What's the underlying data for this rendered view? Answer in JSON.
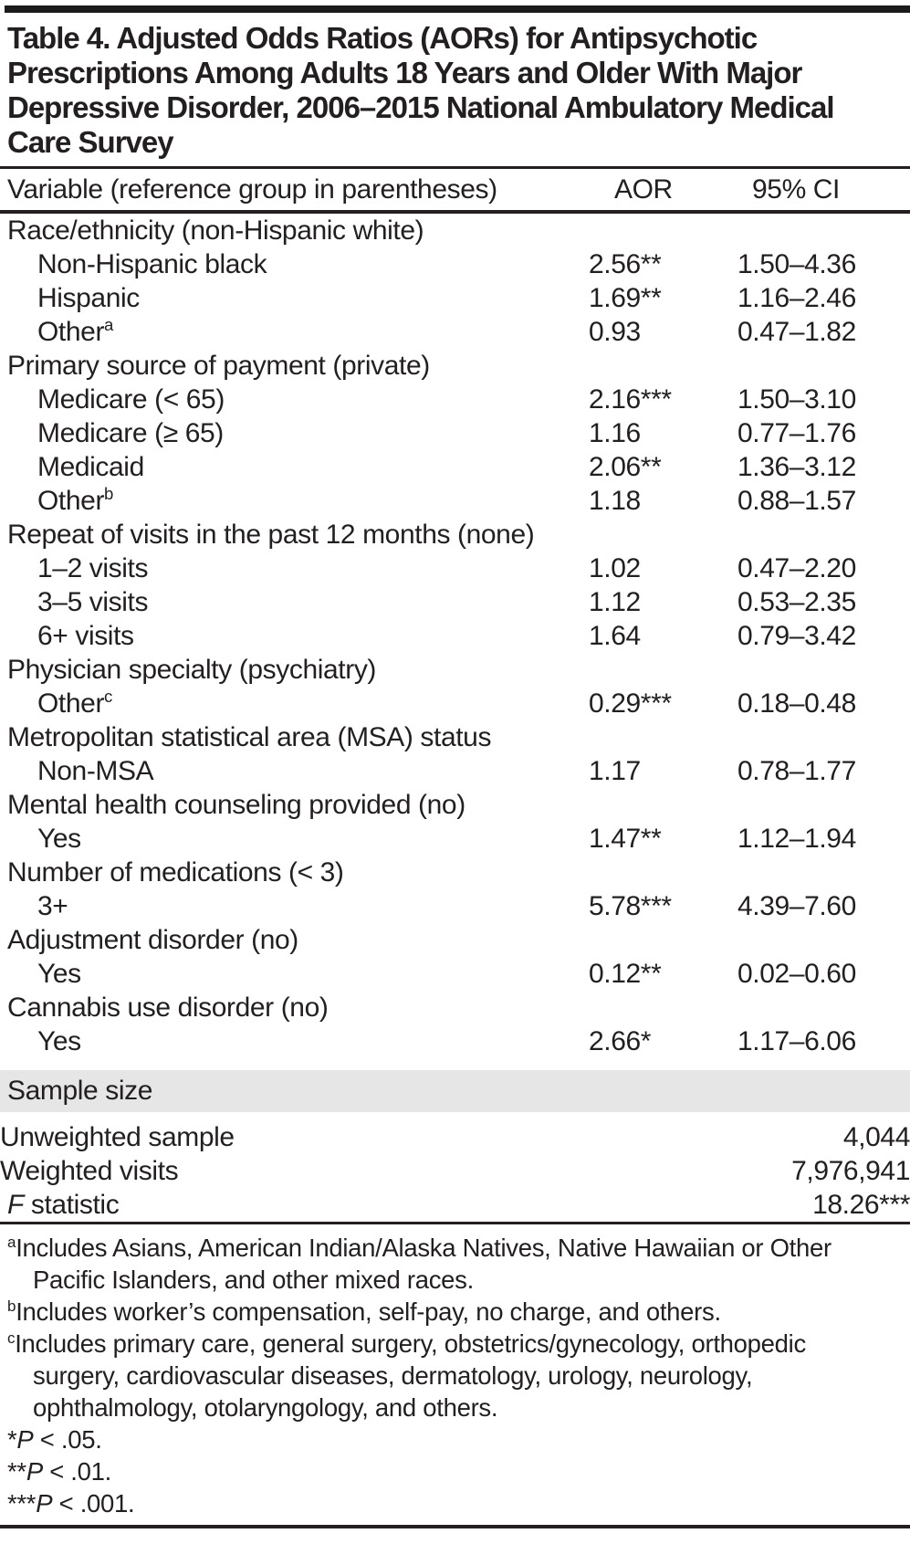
{
  "title": "Table 4. Adjusted Odds Ratios (AORs) for Antipsychotic Prescriptions Among Adults 18 Years and Older With Major Depressive Disorder, 2006–2015 National Ambulatory Medical Care Survey",
  "header": {
    "variable": "Variable (reference group in parentheses)",
    "aor": "AOR",
    "ci": "95% CI"
  },
  "rows": [
    {
      "type": "group",
      "label": "Race/ethnicity (non-Hispanic white)"
    },
    {
      "type": "item",
      "label": "Non-Hispanic black",
      "aor": "2.56**",
      "ci": "1.50–4.36"
    },
    {
      "type": "item",
      "label": "Hispanic",
      "aor": "1.69**",
      "ci": "1.16–2.46"
    },
    {
      "type": "item",
      "label": "Other",
      "sup": "a",
      "aor": "0.93",
      "ci": "0.47–1.82"
    },
    {
      "type": "group",
      "label": "Primary source of payment (private)"
    },
    {
      "type": "item",
      "label": "Medicare (< 65)",
      "aor": "2.16***",
      "ci": "1.50–3.10"
    },
    {
      "type": "item",
      "label": "Medicare (≥ 65)",
      "aor": "1.16",
      "ci": "0.77–1.76"
    },
    {
      "type": "item",
      "label": "Medicaid",
      "aor": "2.06**",
      "ci": "1.36–3.12"
    },
    {
      "type": "item",
      "label": "Other",
      "sup": "b",
      "aor": "1.18",
      "ci": "0.88–1.57"
    },
    {
      "type": "group",
      "label": "Repeat of visits in the past 12 months (none)"
    },
    {
      "type": "item",
      "label": "1–2 visits",
      "aor": "1.02",
      "ci": "0.47–2.20"
    },
    {
      "type": "item",
      "label": "3–5 visits",
      "aor": "1.12",
      "ci": "0.53–2.35"
    },
    {
      "type": "item",
      "label": "6+ visits",
      "aor": "1.64",
      "ci": "0.79–3.42"
    },
    {
      "type": "group",
      "label": "Physician specialty (psychiatry)"
    },
    {
      "type": "item",
      "label": "Other",
      "sup": "c",
      "aor": "0.29***",
      "ci": "0.18–0.48"
    },
    {
      "type": "group",
      "label": "Metropolitan statistical area (MSA) status"
    },
    {
      "type": "item",
      "label": "Non-MSA",
      "aor": "1.17",
      "ci": "0.78–1.77"
    },
    {
      "type": "group",
      "label": "Mental health counseling provided (no)"
    },
    {
      "type": "item",
      "label": "Yes",
      "aor": "1.47**",
      "ci": "1.12–1.94"
    },
    {
      "type": "group",
      "label": "Number of medications (< 3)"
    },
    {
      "type": "item",
      "label": "3+",
      "aor": "5.78***",
      "ci": "4.39–7.60"
    },
    {
      "type": "group",
      "label": "Adjustment disorder (no)"
    },
    {
      "type": "item",
      "label": "Yes",
      "aor": "0.12**",
      "ci": "0.02–0.60"
    },
    {
      "type": "group",
      "label": "Cannabis use disorder (no)"
    },
    {
      "type": "item",
      "label": "Yes",
      "aor": "2.66*",
      "ci": "1.17–6.06"
    }
  ],
  "sample": {
    "band_label": "Sample size",
    "rows": [
      {
        "label": "Unweighted sample",
        "value": "4,044",
        "indent": true
      },
      {
        "label": "Weighted visits",
        "value": "7,976,941",
        "indent": true
      },
      {
        "label_italic": "F",
        "label": " statistic",
        "value": "18.26***",
        "indent": false
      }
    ]
  },
  "footnotes": {
    "sup_notes": [
      {
        "sup": "a",
        "text": "Includes Asians, American Indian/Alaska Natives, Native Hawaiian or Other Pacific Islanders, and other mixed races."
      },
      {
        "sup": "b",
        "text": "Includes worker’s compensation, self-pay, no charge, and others."
      },
      {
        "sup": "c",
        "text": "Includes primary care, general surgery, obstetrics/gynecology, orthopedic surgery, cardiovascular diseases, dermatology, urology, neurology, ophthalmology, otolaryngology, and others."
      }
    ],
    "p_notes": [
      {
        "stars": "*",
        "p": "P",
        "text": " < .05."
      },
      {
        "stars": "**",
        "p": "P",
        "text": " < .01."
      },
      {
        "stars": "***",
        "p": "P",
        "text": " < .001."
      }
    ]
  }
}
